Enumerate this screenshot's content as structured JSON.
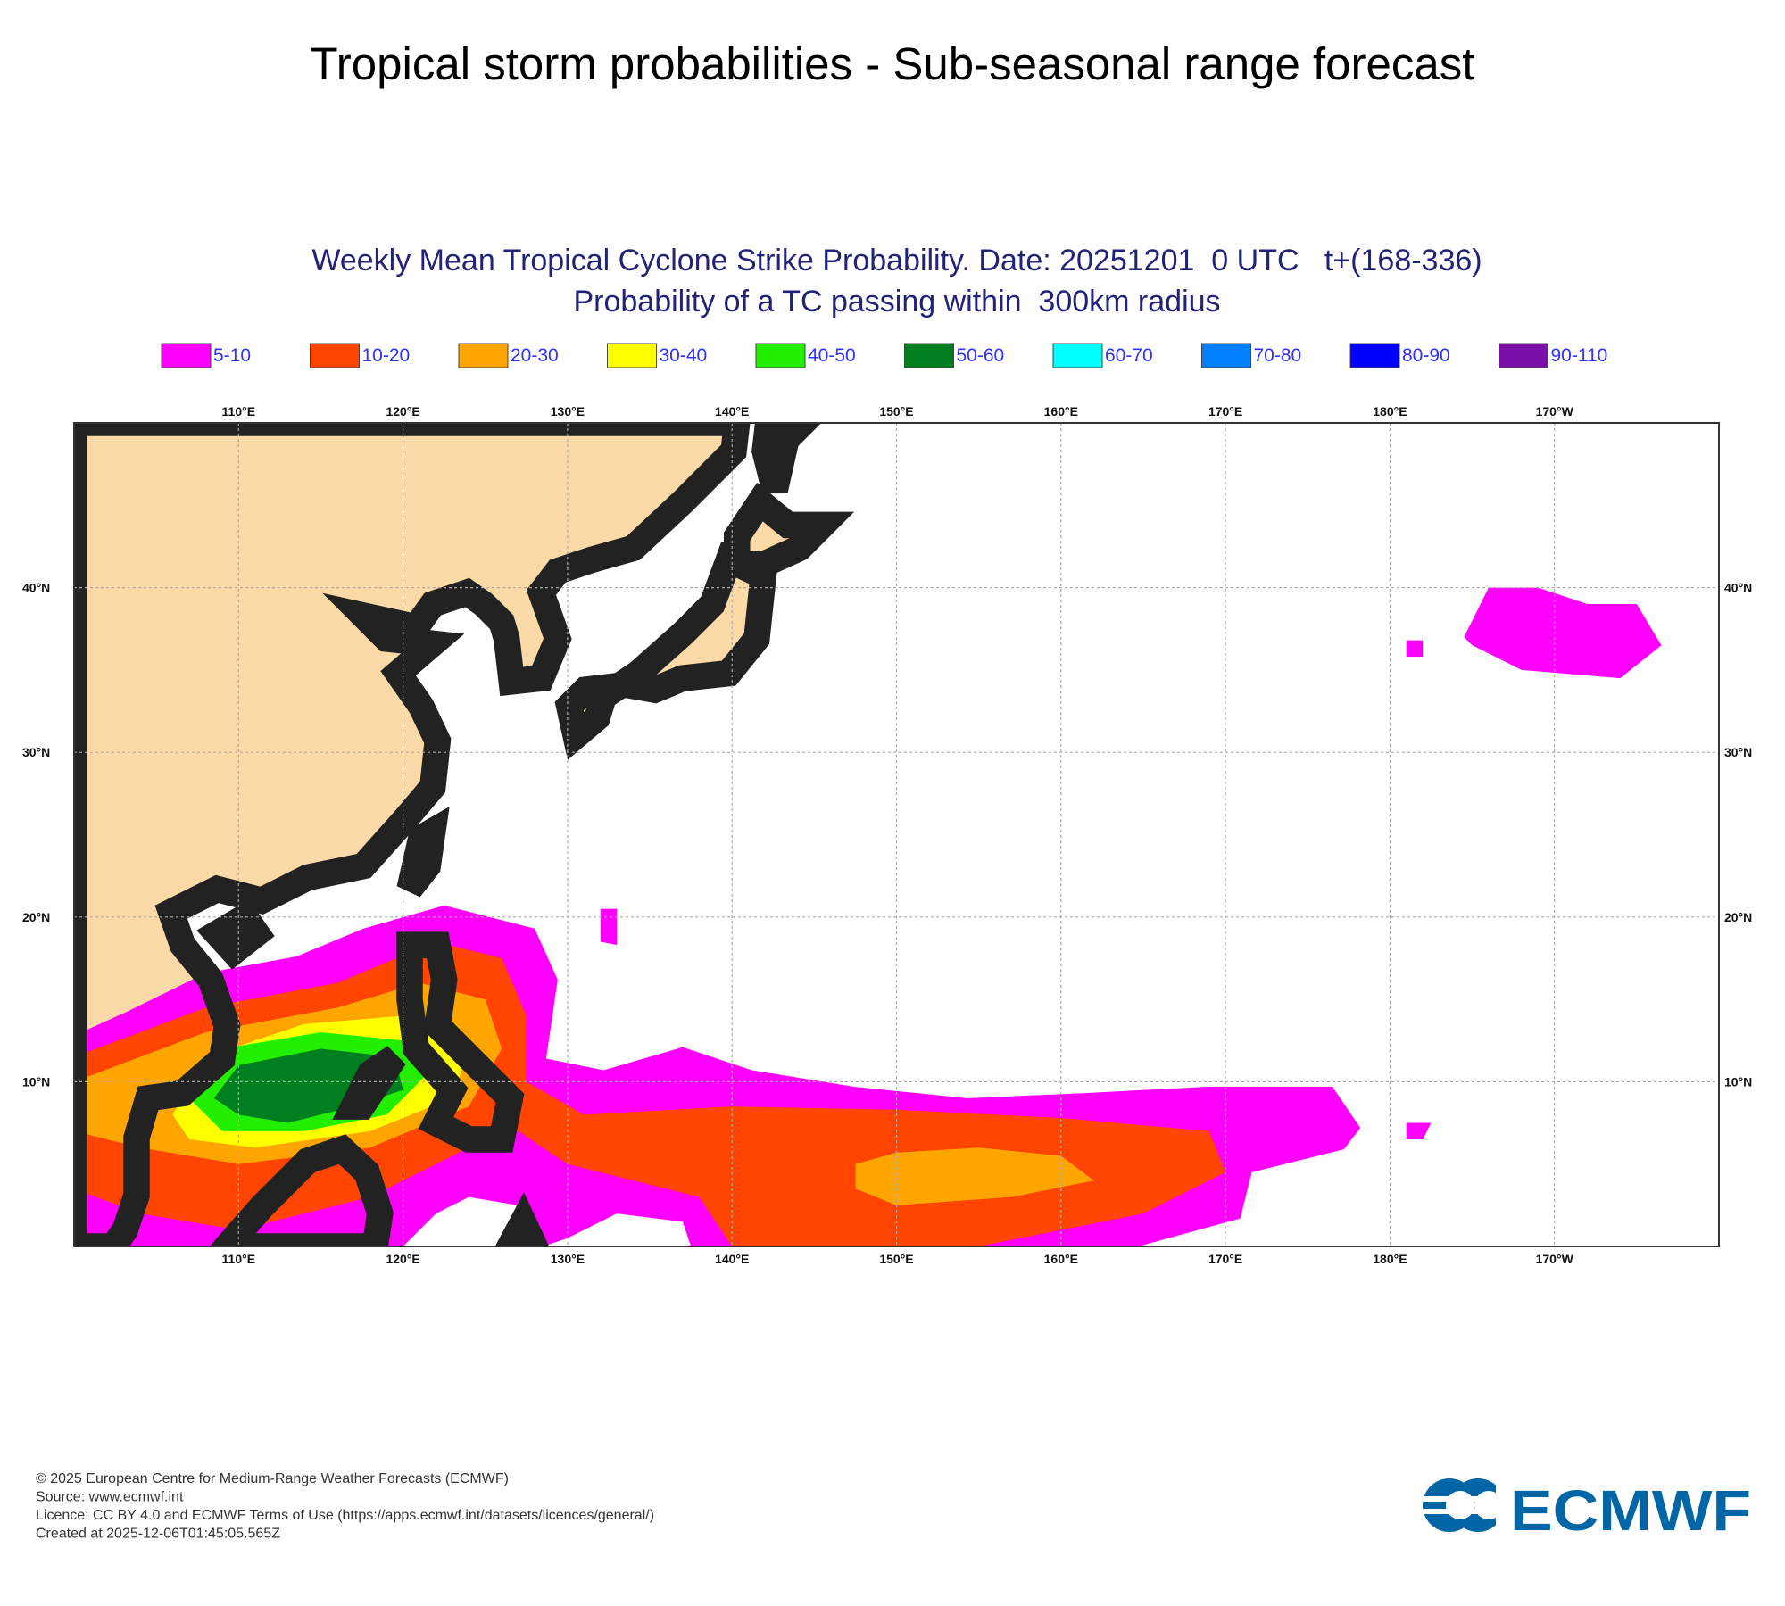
{
  "title": "Tropical storm probabilities - Sub-seasonal range forecast",
  "map": {
    "title_line1": "Weekly Mean Tropical Cyclone Strike Probability. Date: 20251201  0 UTC   t+(168-336)",
    "title_line2": "Probability of a TC passing within  300km radius",
    "legend": [
      {
        "label": "5-10",
        "color": "#ff00ff"
      },
      {
        "label": "10-20",
        "color": "#ff4500"
      },
      {
        "label": "20-30",
        "color": "#ffa500"
      },
      {
        "label": "30-40",
        "color": "#ffff00"
      },
      {
        "label": "40-50",
        "color": "#22ee00"
      },
      {
        "label": "50-60",
        "color": "#007f20"
      },
      {
        "label": "60-70",
        "color": "#00ffff"
      },
      {
        "label": "70-80",
        "color": "#0080ff"
      },
      {
        "label": "80-90",
        "color": "#0000ff"
      },
      {
        "label": "90-110",
        "color": "#7a10a8"
      }
    ],
    "lon_labels": [
      "110°E",
      "120°E",
      "130°E",
      "140°E",
      "150°E",
      "160°E",
      "170°E",
      "180°E",
      "170°W"
    ],
    "lat_labels": [
      "40°N",
      "30°N",
      "20°N",
      "10°N"
    ]
  },
  "footer": {
    "lines": [
      "© 2025 European Centre for Medium-Range Weather Forecasts (ECMWF)",
      "Source: www.ecmwf.int",
      "Licence: CC BY 4.0 and ECMWF Terms of Use (https://apps.ecmwf.int/datasets/licences/general/)",
      "Created at 2025-12-06T01:45:05.565Z"
    ]
  },
  "logo": {
    "text": "ECMWF"
  }
}
